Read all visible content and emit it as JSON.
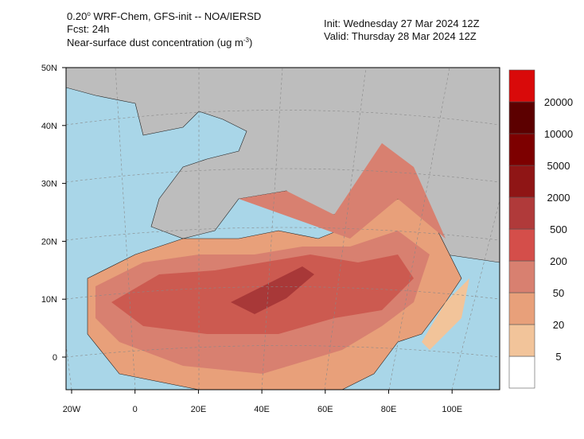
{
  "header": {
    "model_pre": "0.20",
    "model_deg": "o",
    "model_post": " WRF-Chem, GFS-init -- NOA/IERSD",
    "forecast": "Fcst: 24h",
    "field_pre": "Near-surface dust concentration (ug m",
    "field_sup": "-3",
    "field_post": ")",
    "init": "Init: Wednesday 27 Mar 2024   12Z",
    "valid": "Valid: Thursday 28 Mar 2024   12Z"
  },
  "map": {
    "lat_labels": [
      "50N",
      "40N",
      "30N",
      "20N",
      "10N",
      "0"
    ],
    "lon_labels": [
      "20W",
      "0",
      "20E",
      "40E",
      "60E",
      "80E",
      "100E"
    ]
  },
  "colorbar": {
    "levels": [
      5,
      20,
      50,
      200,
      500,
      2000,
      5000,
      10000,
      20000
    ],
    "colors": [
      "#ffffff",
      "#f2c49a",
      "#e8a07a",
      "#d88070",
      "#d44e4a",
      "#b03a3a",
      "#8f1515",
      "#7d0000",
      "#5c0000",
      "#d90a0a"
    ]
  }
}
